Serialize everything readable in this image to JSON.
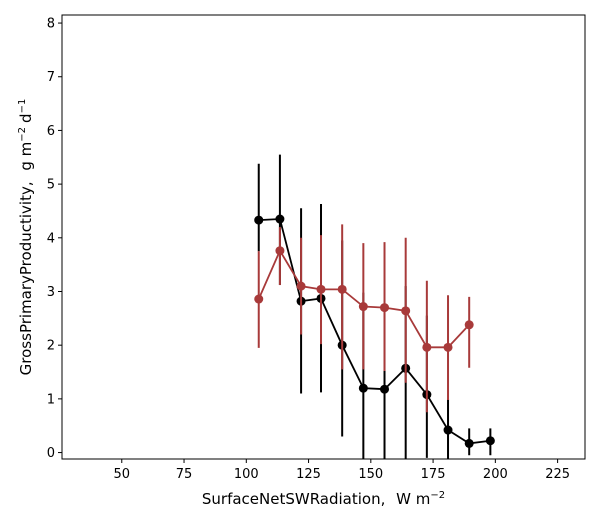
{
  "chart_data": {
    "type": "line",
    "xlabel": "SurfaceNetSWRadiation,",
    "xlabel_unit_base": "W m",
    "xlabel_unit_sup": "−2",
    "ylabel": "GrossPrimaryProductivity,",
    "ylabel_unit_1": "g m",
    "ylabel_unit_sup1": "−2",
    "ylabel_unit_2": "d",
    "ylabel_unit_sup2": "−1",
    "xlim": [
      26,
      236
    ],
    "ylim": [
      -0.12,
      8.15
    ],
    "xticks": [
      50,
      75,
      100,
      125,
      150,
      175,
      200,
      225
    ],
    "yticks": [
      0,
      1,
      2,
      3,
      4,
      5,
      6,
      7,
      8
    ],
    "grid": false,
    "series": [
      {
        "color": "#000000",
        "x": [
          105,
          113.5,
          122,
          130,
          138.5,
          147,
          155.5,
          164,
          172.5,
          181,
          189.5,
          198
        ],
        "y": [
          4.33,
          4.35,
          2.82,
          2.87,
          2.0,
          1.2,
          1.18,
          1.57,
          1.08,
          0.42,
          0.17,
          0.22
        ],
        "err_low": [
          3.75,
          3.12,
          1.1,
          1.12,
          0.3,
          -0.2,
          -0.2,
          -0.2,
          -0.1,
          -0.2,
          -0.05,
          -0.05
        ],
        "err_high": [
          5.38,
          5.55,
          4.55,
          4.63,
          3.95,
          2.98,
          2.75,
          3.1,
          2.55,
          1.0,
          0.45,
          0.45
        ]
      },
      {
        "color": "#a83a3a",
        "x": [
          105,
          113.5,
          122,
          130,
          138.5,
          147,
          155.5,
          164,
          172.5,
          181,
          189.5
        ],
        "y": [
          2.86,
          3.76,
          3.1,
          3.04,
          3.04,
          2.72,
          2.7,
          2.64,
          1.96,
          1.96,
          2.38
        ],
        "err_low": [
          1.95,
          3.12,
          2.2,
          2.02,
          1.55,
          1.55,
          1.52,
          1.3,
          0.75,
          0.98,
          1.58
        ],
        "err_high": [
          3.75,
          4.2,
          4.0,
          4.05,
          4.25,
          3.9,
          3.92,
          4.0,
          3.2,
          2.93,
          2.9
        ]
      }
    ]
  }
}
